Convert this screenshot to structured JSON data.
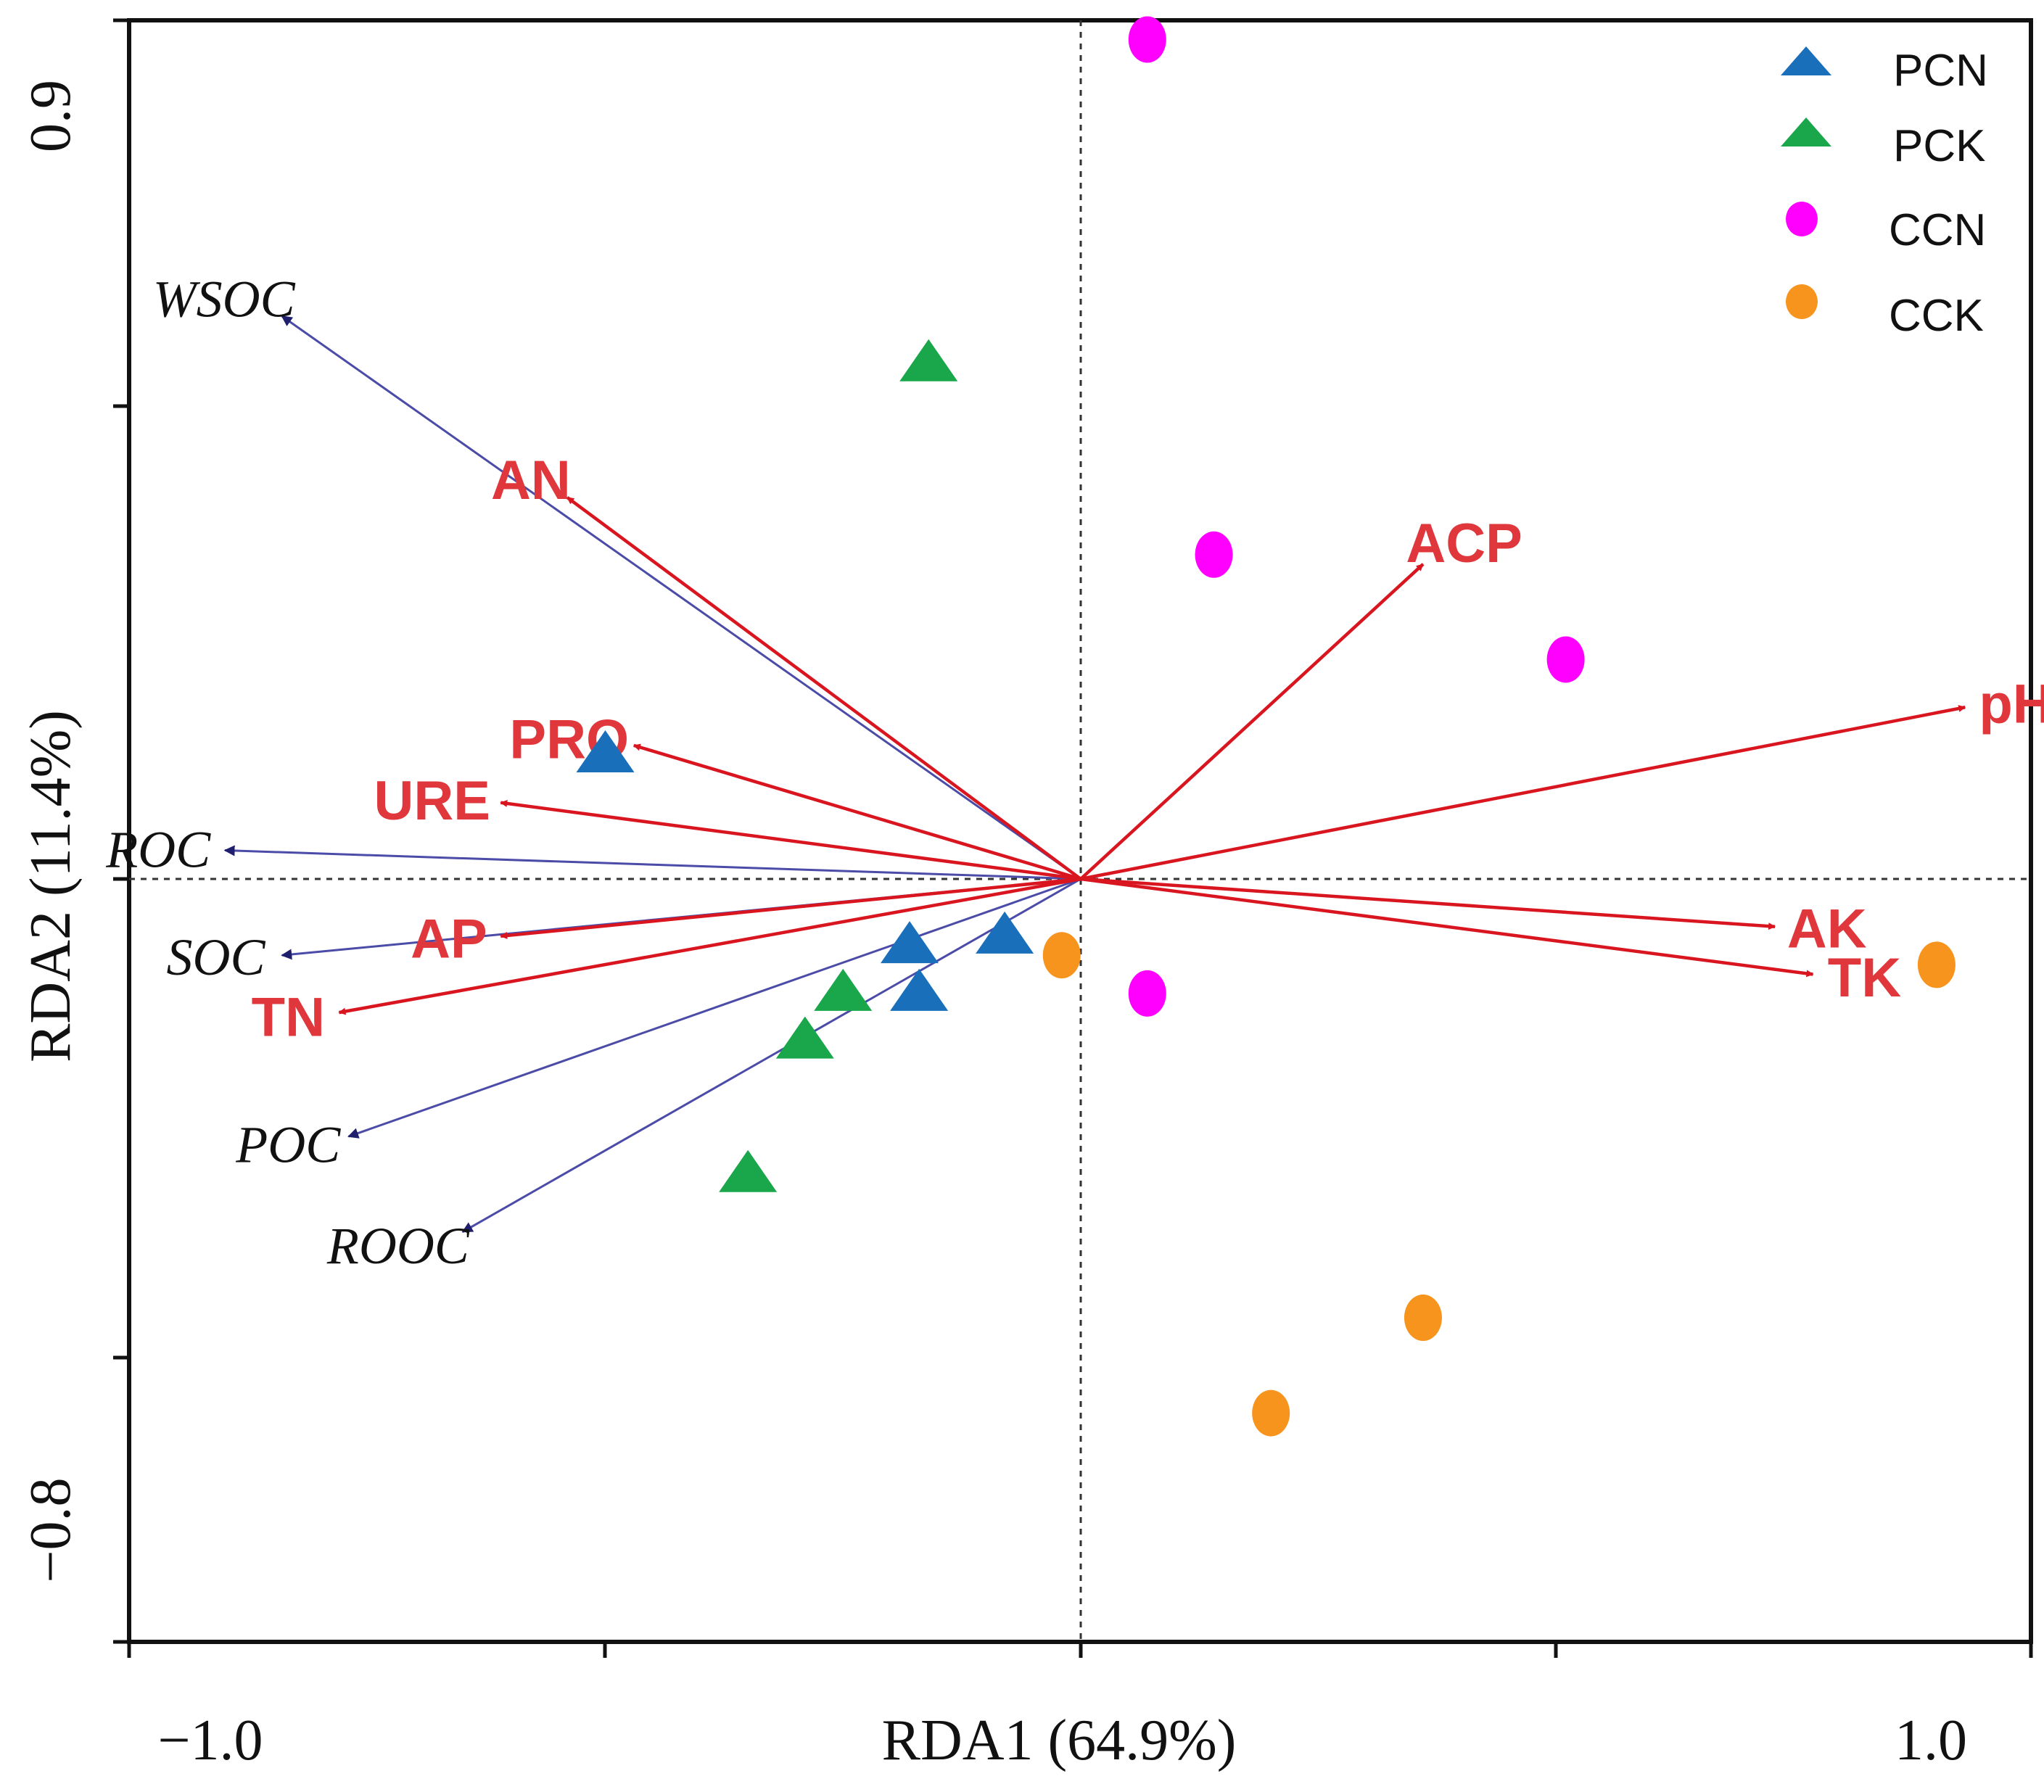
{
  "chart_data": {
    "type": "scatter",
    "subtype": "RDA biplot",
    "xlabel": "RDA1 (64.9%)",
    "ylabel": "RDA2 (11.4%)",
    "xlim": [
      -1.0,
      1.0
    ],
    "ylim": [
      -0.8,
      0.9
    ],
    "x_tick_labels": [
      {
        "value": -1.0,
        "label": "−1.0"
      },
      {
        "value": 1.0,
        "label": "1.0"
      }
    ],
    "y_tick_labels": [
      {
        "value": 0.9,
        "label": "0.9"
      },
      {
        "value": -0.8,
        "label": "−0.8"
      }
    ],
    "reference_lines": {
      "x": 0,
      "y": 0
    },
    "legend_position": "top-right",
    "series": [
      {
        "name": "PCN",
        "marker": "triangle",
        "color": "#1a6fba",
        "points": [
          [
            -0.5,
            0.13
          ],
          [
            -0.18,
            -0.07
          ],
          [
            -0.08,
            -0.06
          ],
          [
            -0.17,
            -0.12
          ]
        ]
      },
      {
        "name": "PCK",
        "marker": "triangle",
        "color": "#1aa64a",
        "points": [
          [
            -0.16,
            0.54
          ],
          [
            -0.25,
            -0.12
          ],
          [
            -0.29,
            -0.17
          ],
          [
            -0.35,
            -0.31
          ]
        ]
      },
      {
        "name": "CCN",
        "marker": "ellipse",
        "color": "#ff00ff",
        "points": [
          [
            0.07,
            0.88
          ],
          [
            0.14,
            0.34
          ],
          [
            0.51,
            0.23
          ],
          [
            0.07,
            -0.12
          ]
        ]
      },
      {
        "name": "CCK",
        "marker": "ellipse",
        "color": "#f7941d",
        "points": [
          [
            -0.02,
            -0.08
          ],
          [
            0.9,
            -0.09
          ],
          [
            0.36,
            -0.46
          ],
          [
            0.2,
            -0.56
          ]
        ]
      }
    ],
    "environmental_arrows": [
      {
        "label": "AN",
        "x": -0.54,
        "y": 0.4
      },
      {
        "label": "ACP",
        "x": 0.36,
        "y": 0.33
      },
      {
        "label": "pH",
        "x": 0.93,
        "y": 0.18
      },
      {
        "label": "PRO",
        "x": -0.47,
        "y": 0.14
      },
      {
        "label": "URE",
        "x": -0.61,
        "y": 0.08
      },
      {
        "label": "AK",
        "x": 0.73,
        "y": -0.05
      },
      {
        "label": "TK",
        "x": 0.77,
        "y": -0.1
      },
      {
        "label": "AP",
        "x": -0.61,
        "y": -0.06
      },
      {
        "label": "TN",
        "x": -0.78,
        "y": -0.14
      }
    ],
    "carbon_arrows": [
      {
        "label": "WSOC",
        "x": -0.84,
        "y": 0.59
      },
      {
        "label": "ROC",
        "x": -0.9,
        "y": 0.03
      },
      {
        "label": "SOC",
        "x": -0.84,
        "y": -0.08
      },
      {
        "label": "POC",
        "x": -0.77,
        "y": -0.27
      },
      {
        "label": "ROOC",
        "x": -0.65,
        "y": -0.37
      }
    ],
    "colors": {
      "env_arrow": "#d9161f",
      "env_text": "#e0373c",
      "carbon_arrow": "#4b4ba8"
    }
  }
}
